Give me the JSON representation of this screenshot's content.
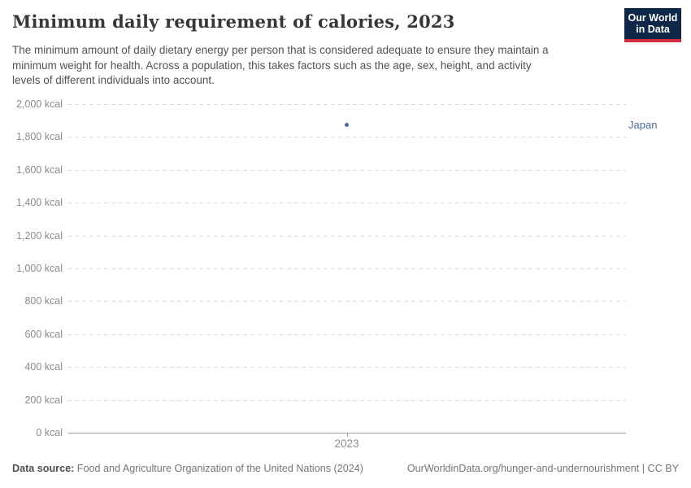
{
  "header": {
    "title": "Minimum daily requirement of calories, 2023",
    "subtitle_lines": [
      "The minimum amount of daily dietary energy per person that is considered adequate to ensure they maintain a",
      "minimum weight for health. Across a population, this takes factors such as the age, sex, height, and activity",
      "levels of different individuals into account."
    ],
    "logo": {
      "line1": "Our World",
      "line2": "in Data",
      "bg_color": "#0f2849",
      "stripe_color": "#cf2e41"
    }
  },
  "chart_data": {
    "type": "scatter",
    "title": "Minimum daily requirement of calories, 2023",
    "x": [
      2023
    ],
    "series": [
      {
        "name": "Japan",
        "values": [
          1873
        ],
        "color": "#4c6a9c"
      }
    ],
    "xlabel": "",
    "ylabel": "",
    "ylim": [
      0,
      2000
    ],
    "ytick_interval": 200,
    "ytick_suffix": "kcal",
    "grid": "horizontal-dashed",
    "legend": "entity-label-at-right-edge"
  },
  "axis": {
    "yticks": [
      {
        "value": 0,
        "label": "0 kcal"
      },
      {
        "value": 200,
        "label": "200 kcal"
      },
      {
        "value": 400,
        "label": "400 kcal"
      },
      {
        "value": 600,
        "label": "600 kcal"
      },
      {
        "value": 800,
        "label": "800 kcal"
      },
      {
        "value": 1000,
        "label": "1,000 kcal"
      },
      {
        "value": 1200,
        "label": "1,200 kcal"
      },
      {
        "value": 1400,
        "label": "1,400 kcal"
      },
      {
        "value": 1600,
        "label": "1,600 kcal"
      },
      {
        "value": 1800,
        "label": "1,800 kcal"
      },
      {
        "value": 2000,
        "label": "2,000 kcal"
      }
    ],
    "xticks": [
      {
        "value": 2023,
        "label": "2023"
      }
    ]
  },
  "footer": {
    "datasource_prefix": "Data source:",
    "datasource": "Food and Agriculture Organization of the United Nations (2024)",
    "link": "OurWorldinData.org/hunger-and-undernourishment | CC BY"
  }
}
